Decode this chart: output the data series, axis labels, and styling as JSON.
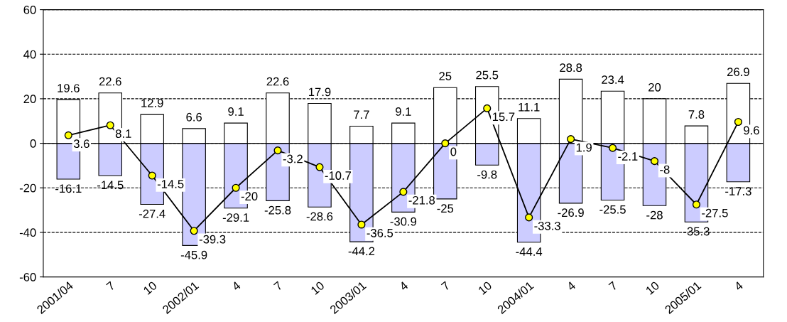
{
  "chart_data": {
    "type": "bar",
    "stacked": true,
    "categories": [
      "2001/04",
      "7",
      "10",
      "2002/01",
      "4",
      "7",
      "10",
      "2003/01",
      "4",
      "7",
      "10",
      "2004/01",
      "4",
      "7",
      "10",
      "2005/01",
      "4"
    ],
    "series": [
      {
        "color": "#ffffff",
        "values": [
          19.6,
          22.6,
          12.9,
          6.6,
          9.1,
          22.6,
          17.9,
          7.7,
          9.1,
          25,
          25.5,
          11.1,
          28.8,
          23.4,
          20,
          7.8,
          26.9
        ]
      },
      {
        "color": "#ccccff",
        "values": [
          -16.1,
          -14.5,
          -27.4,
          -45.9,
          -29.1,
          -25.8,
          -28.6,
          -44.2,
          -30.9,
          -25,
          -9.8,
          -44.4,
          -26.9,
          -25.5,
          -28,
          -35.3,
          -17.3
        ]
      },
      {
        "type": "line",
        "color": "#000000",
        "marker": "circle",
        "line_style": "solid",
        "values": [
          3.6,
          8.1,
          -14.5,
          -39.3,
          -20,
          -3.2,
          -10.7,
          -36.5,
          -21.8,
          0,
          15.7,
          -33.3,
          1.9,
          -2.1,
          -8,
          -27.5,
          9.6
        ]
      }
    ],
    "ylim": [
      -60,
      60
    ],
    "yticks": [
      -60,
      -40,
      -20,
      0,
      20,
      40,
      60
    ],
    "grid": "y",
    "data_labels": true
  }
}
